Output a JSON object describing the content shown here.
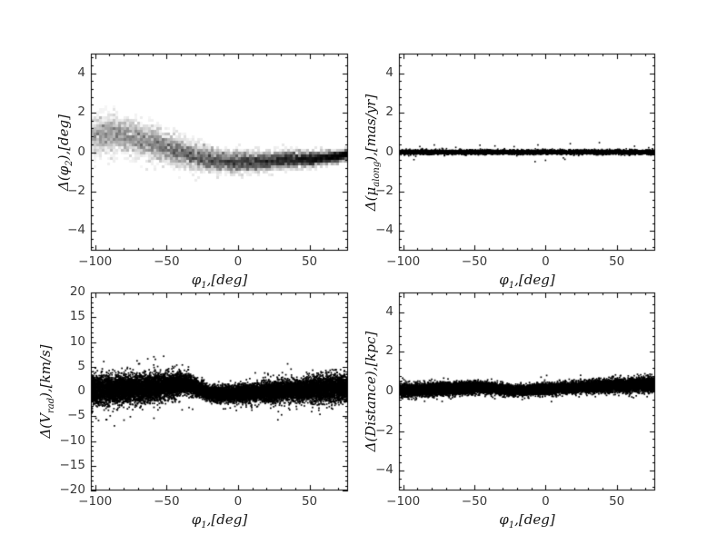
{
  "figure": {
    "background": "#ffffff",
    "frame_color": "#000000",
    "tick_color": "#000000",
    "tick_label_color": "#3a3a3a",
    "axis_label_color": "#151515",
    "rows": 2,
    "cols": 2
  },
  "chart_data": [
    {
      "id": "delta-phi2-vs-phi1",
      "type": "scatter",
      "style": "density-histogram-grayscale",
      "title": "",
      "xlabel": "φ_{1},[deg]",
      "ylabel": "Δ(φ_{2}),[deg]",
      "xlim": [
        -103,
        77
      ],
      "ylim": [
        -5,
        5
      ],
      "xticks": [
        -100,
        -50,
        0,
        50
      ],
      "xtick_labels": [
        "−100",
        "−50",
        "0",
        "50"
      ],
      "yticks": [
        4,
        2,
        0,
        -2,
        -4
      ],
      "ytick_labels": [
        "4",
        "2",
        "0",
        "−2",
        "−4"
      ],
      "x_minor_step": 10,
      "y_minor_step": 0.4,
      "grid": false,
      "legend": null,
      "color": "#000000",
      "marker_px": 3,
      "n_points": 8000,
      "outlier_frac": 0.0,
      "outlier_scale": 1,
      "band": {
        "x": [
          -103,
          -90,
          -75,
          -60,
          -45,
          -30,
          -15,
          0,
          15,
          30,
          45,
          60,
          70,
          76
        ],
        "mean": [
          0.85,
          0.95,
          0.75,
          0.45,
          0.1,
          -0.25,
          -0.45,
          -0.5,
          -0.5,
          -0.4,
          -0.38,
          -0.3,
          -0.22,
          -0.12
        ],
        "sigma": [
          0.5,
          0.48,
          0.45,
          0.42,
          0.38,
          0.33,
          0.28,
          0.26,
          0.24,
          0.22,
          0.2,
          0.16,
          0.13,
          0.11
        ],
        "alpha": [
          0.045,
          0.05,
          0.05,
          0.055,
          0.06,
          0.06,
          0.065,
          0.07,
          0.075,
          0.08,
          0.09,
          0.1,
          0.11,
          0.12
        ]
      },
      "panel_box": [
        100,
        59,
        383,
        276
      ]
    },
    {
      "id": "delta-mu-along-vs-phi1",
      "type": "scatter",
      "style": "dense-black-points",
      "title": "",
      "xlabel": "φ_{1},[deg]",
      "ylabel": "Δ(μ_{along}),[mas/yr]",
      "xlim": [
        -103,
        77
      ],
      "ylim": [
        -5,
        5
      ],
      "xticks": [
        -100,
        -50,
        0,
        50
      ],
      "xtick_labels": [
        "−100",
        "−50",
        "0",
        "50"
      ],
      "yticks": [
        4,
        2,
        0,
        -2,
        -4
      ],
      "ytick_labels": [
        "4",
        "2",
        "0",
        "−2",
        "−4"
      ],
      "x_minor_step": 10,
      "y_minor_step": 0.4,
      "grid": false,
      "legend": null,
      "color": "#000000",
      "marker_px": 1.6,
      "n_points": 6500,
      "outlier_frac": 0.01,
      "outlier_scale": 4,
      "band": {
        "x": [
          -103,
          77
        ],
        "mean": [
          0.0,
          0.0
        ],
        "sigma": [
          0.05,
          0.05
        ],
        "alpha": [
          1,
          1
        ]
      },
      "panel_box": [
        439,
        59,
        721,
        276
      ]
    },
    {
      "id": "delta-vrad-vs-phi1",
      "type": "scatter",
      "style": "dense-black-points",
      "title": "",
      "xlabel": "φ_{1},[deg]",
      "ylabel": "Δ(V_{rad}),[km/s]",
      "xlim": [
        -103,
        77
      ],
      "ylim": [
        -20,
        20
      ],
      "xticks": [
        -100,
        -50,
        0,
        50
      ],
      "xtick_labels": [
        "−100",
        "−50",
        "0",
        "50"
      ],
      "yticks": [
        20,
        15,
        10,
        5,
        0,
        -5,
        -10,
        -15,
        -20
      ],
      "ytick_labels": [
        "20",
        "15",
        "10",
        "5",
        "0",
        "−5",
        "−10",
        "−15",
        "−20"
      ],
      "x_minor_step": 10,
      "y_minor_step": 1,
      "grid": false,
      "legend": null,
      "color": "#000000",
      "marker_px": 1.7,
      "n_points": 15000,
      "outlier_frac": 0.02,
      "outlier_scale": 2.3,
      "band": {
        "x": [
          -103,
          -80,
          -60,
          -48,
          -38,
          -32,
          -26,
          -20,
          -12,
          0,
          12,
          25,
          40,
          55,
          70,
          76
        ],
        "mean": [
          0.2,
          0.45,
          0.7,
          1.1,
          1.6,
          1.2,
          0.3,
          -0.4,
          -0.6,
          -0.5,
          -0.25,
          0.0,
          0.25,
          0.45,
          0.65,
          0.7
        ],
        "sigma": [
          1.5,
          1.4,
          1.35,
          1.25,
          1.0,
          0.85,
          0.7,
          0.7,
          0.75,
          0.85,
          0.9,
          1.0,
          1.1,
          1.2,
          1.3,
          1.3
        ],
        "alpha": [
          1,
          1,
          1,
          1,
          1,
          1,
          1,
          1,
          1,
          1,
          1,
          1,
          1,
          1,
          1,
          1
        ]
      },
      "panel_box": [
        100,
        322,
        383,
        540
      ]
    },
    {
      "id": "delta-distance-vs-phi1",
      "type": "scatter",
      "style": "dense-black-points",
      "title": "",
      "xlabel": "φ_{1},[deg]",
      "ylabel": "Δ(Distance),[kpc]",
      "xlim": [
        -103,
        77
      ],
      "ylim": [
        -5,
        5
      ],
      "xticks": [
        -100,
        -50,
        0,
        50
      ],
      "xtick_labels": [
        "−100",
        "−50",
        "0",
        "50"
      ],
      "yticks": [
        4,
        2,
        0,
        -2,
        -4
      ],
      "ytick_labels": [
        "4",
        "2",
        "0",
        "−2",
        "−4"
      ],
      "x_minor_step": 10,
      "y_minor_step": 0.4,
      "grid": false,
      "legend": null,
      "color": "#000000",
      "marker_px": 1.7,
      "n_points": 14000,
      "outlier_frac": 0.012,
      "outlier_scale": 2.0,
      "band": {
        "x": [
          -103,
          -80,
          -60,
          -45,
          -32,
          -22,
          -12,
          0,
          15,
          30,
          45,
          60,
          70,
          76
        ],
        "mean": [
          0.05,
          0.1,
          0.17,
          0.2,
          0.12,
          0.05,
          0.08,
          0.13,
          0.18,
          0.24,
          0.28,
          0.32,
          0.35,
          0.36
        ],
        "sigma": [
          0.16,
          0.15,
          0.15,
          0.14,
          0.13,
          0.12,
          0.12,
          0.13,
          0.13,
          0.14,
          0.15,
          0.16,
          0.17,
          0.17
        ],
        "alpha": [
          1,
          1,
          1,
          1,
          1,
          1,
          1,
          1,
          1,
          1,
          1,
          1,
          1,
          1
        ]
      },
      "panel_box": [
        439,
        322,
        721,
        540
      ]
    }
  ]
}
